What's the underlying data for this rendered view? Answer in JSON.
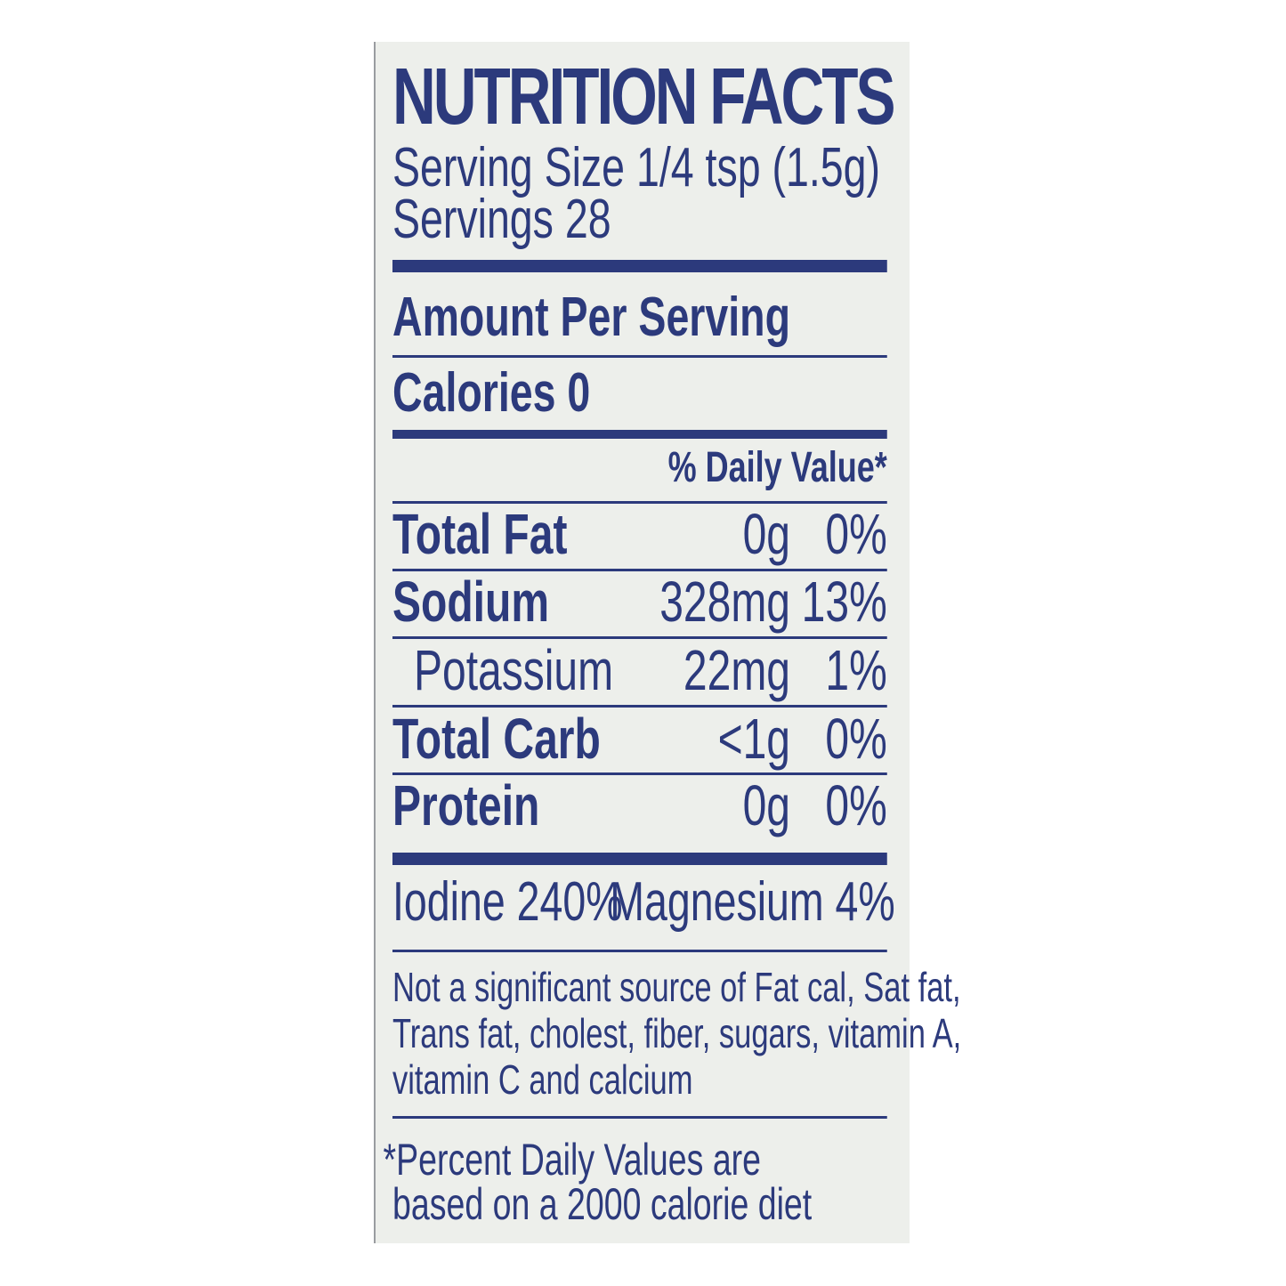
{
  "label": {
    "title": "NUTRITION FACTS",
    "serving_size": "Serving Size 1/4 tsp (1.5g)",
    "servings": "Servings 28",
    "amount_per_serving": "Amount Per Serving",
    "calories": "Calories 0",
    "daily_value_header": "% Daily Value*",
    "nutrients": [
      {
        "name": "Total Fat",
        "amount": "0g",
        "dv": "0%"
      },
      {
        "name": "Sodium",
        "amount": "328mg",
        "dv": "13%"
      },
      {
        "name": "Potassium",
        "amount": "22mg",
        "dv": "1%"
      },
      {
        "name": "Total Carb",
        "amount": "<1g",
        "dv": "0%"
      },
      {
        "name": "Protein",
        "amount": "0g",
        "dv": "0%"
      }
    ],
    "vitamins": {
      "iodine": "Iodine 240%",
      "magnesium": "Magnesium 4%"
    },
    "not_significant": [
      "Not a significant source of Fat cal, Sat fat,",
      "Trans fat, cholest, fiber, sugars, vitamin A,",
      "vitamin C and calcium"
    ],
    "footnote": [
      "*Percent Daily Values are",
      "based on a 2000 calorie diet"
    ],
    "colors": {
      "ink": "#2c3a7c",
      "background": "#edefeb"
    }
  }
}
